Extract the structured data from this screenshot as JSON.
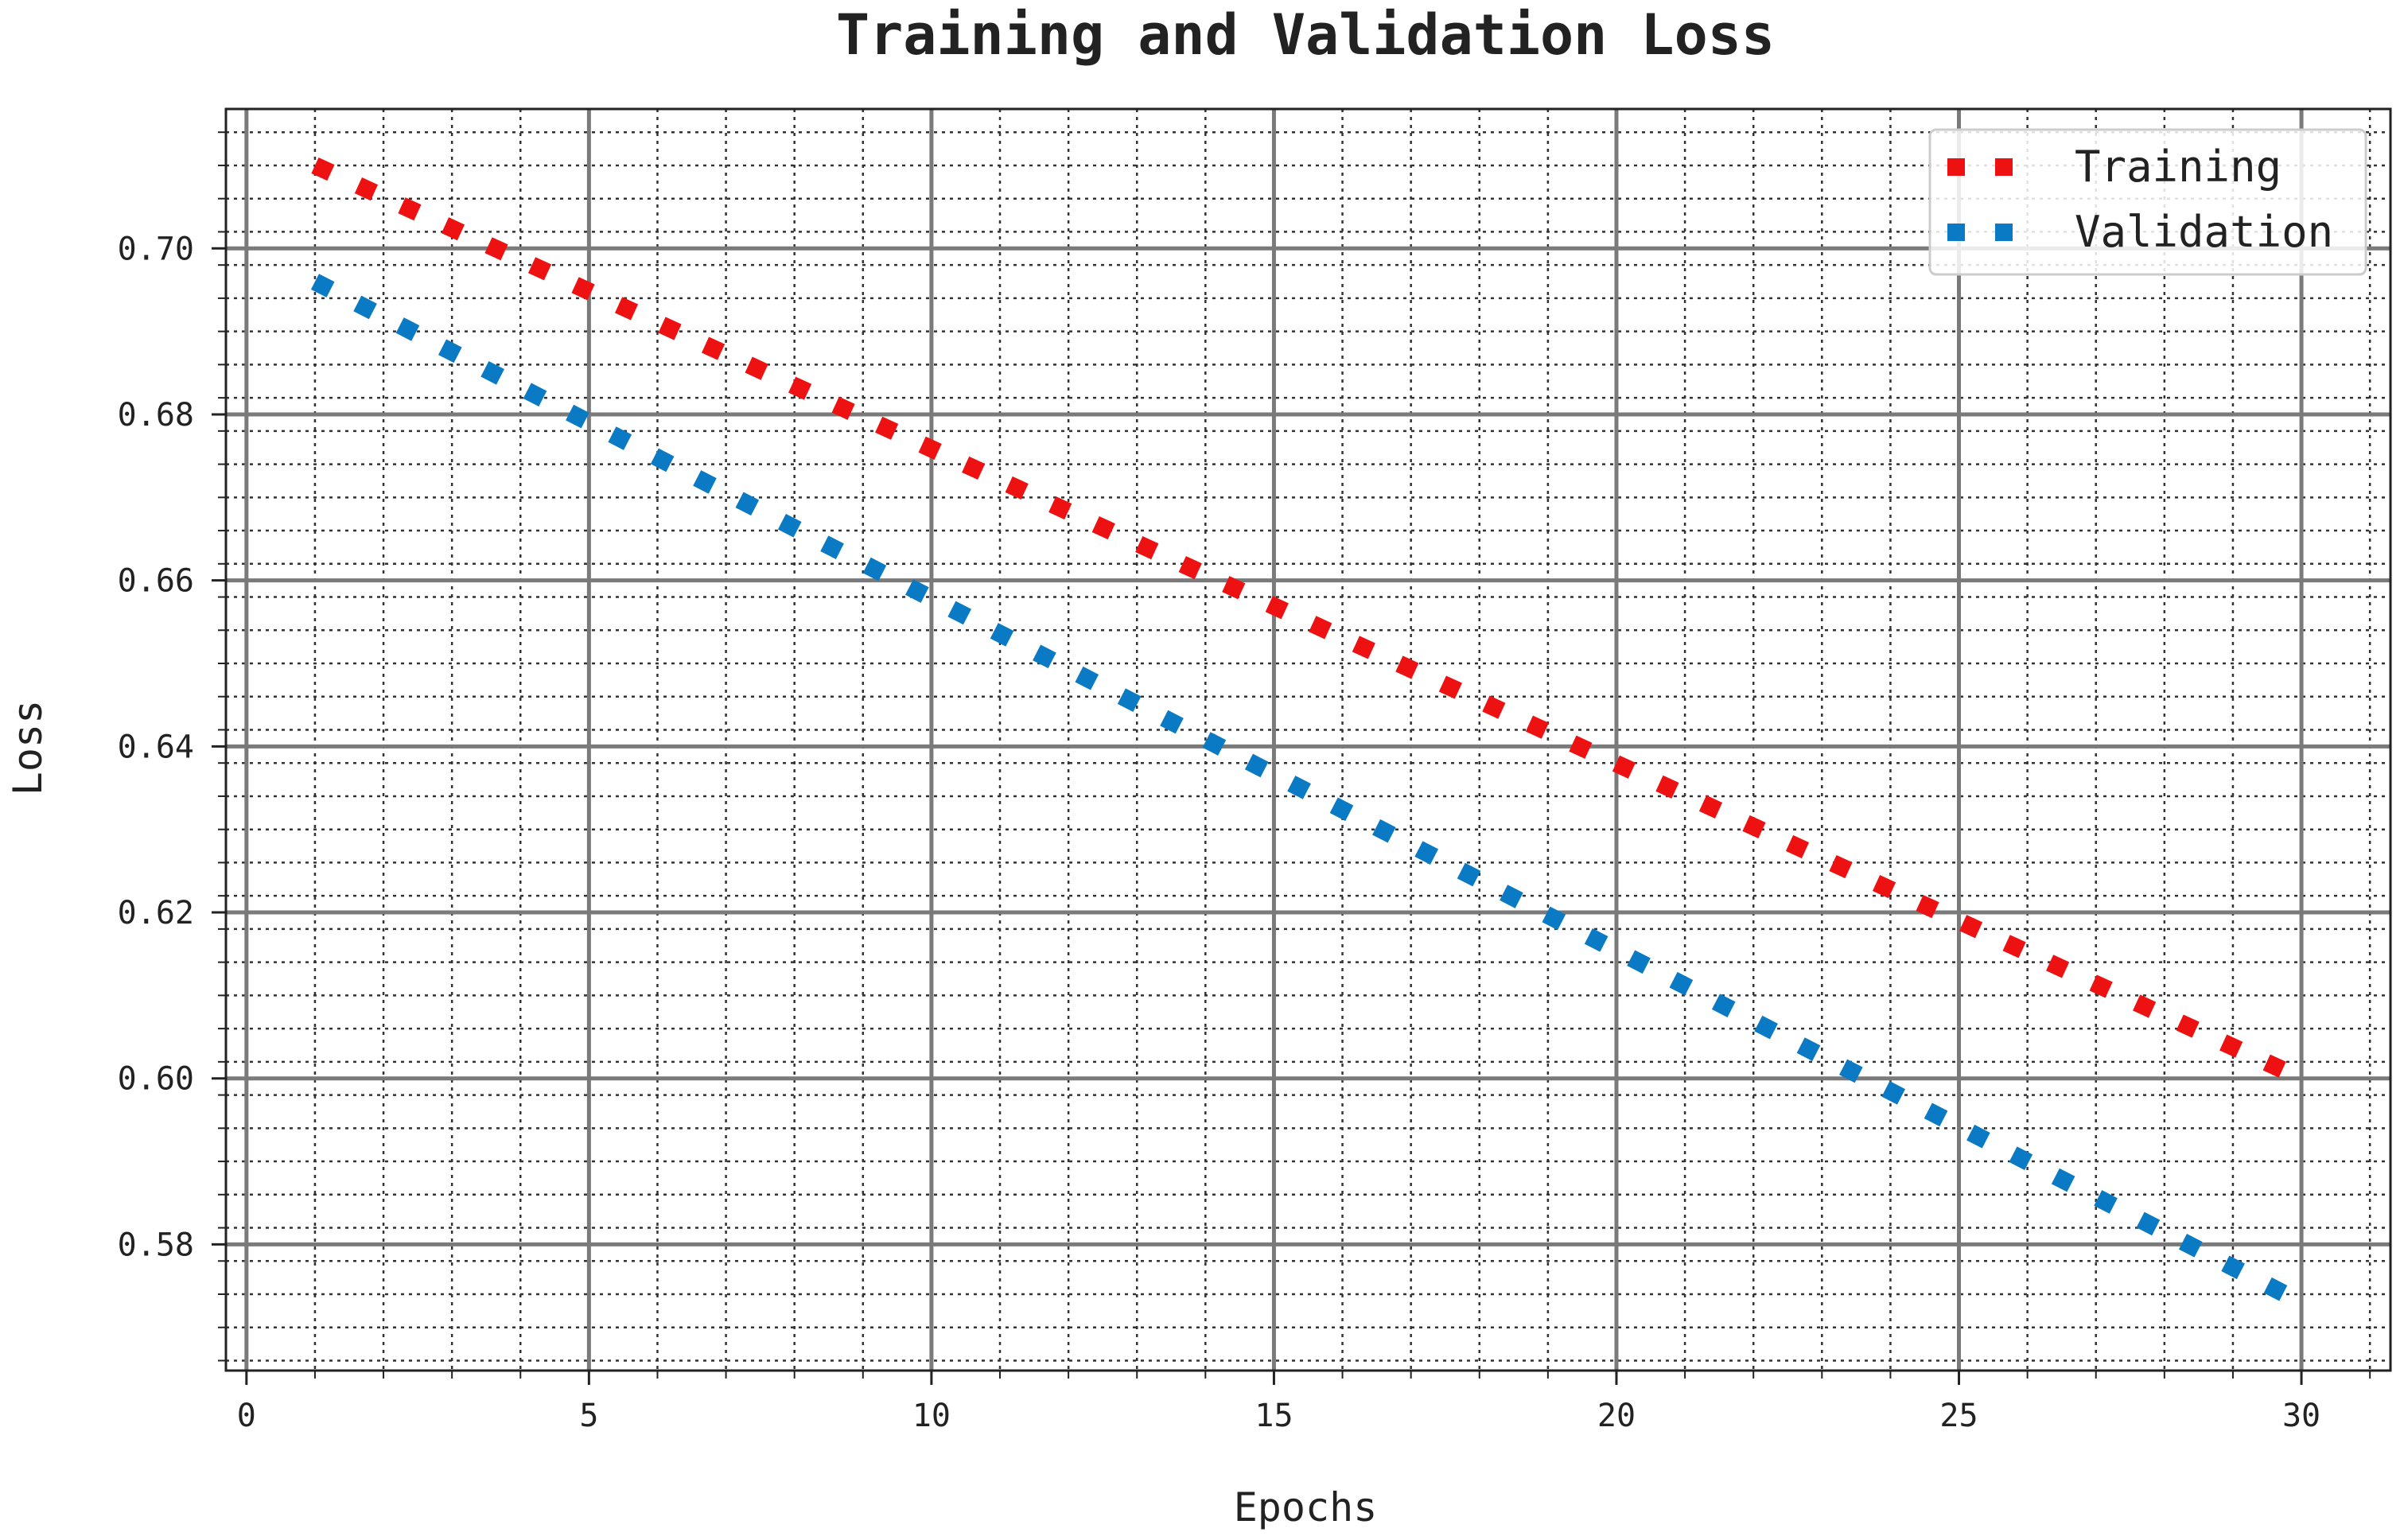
{
  "chart_data": {
    "type": "line",
    "title": "Training and Validation Loss",
    "xlabel": "Epochs",
    "ylabel": "Loss",
    "xlim": [
      -0.3,
      31.3
    ],
    "ylim": [
      0.5648,
      0.7168
    ],
    "xticks": [
      0,
      5,
      10,
      15,
      20,
      25,
      30
    ],
    "xtick_labels": [
      "0",
      "5",
      "10",
      "15",
      "20",
      "25",
      "30"
    ],
    "yticks": [
      0.58,
      0.6,
      0.62,
      0.64,
      0.66,
      0.68,
      0.7
    ],
    "ytick_labels": [
      "0.58",
      "0.60",
      "0.62",
      "0.64",
      "0.66",
      "0.68",
      "0.70"
    ],
    "grid": true,
    "minor_grid": true,
    "line_style": "dotted",
    "legend_position": "top-right",
    "series": [
      {
        "name": "Training",
        "color": "#ee1111",
        "x_start": 1,
        "x_end": 30,
        "y_start": 0.71,
        "y_end": 0.6
      },
      {
        "name": "Validation",
        "color": "#0a7ac4",
        "x_start": 1,
        "x_end": 30,
        "y_start": 0.696,
        "y_end": 0.573
      }
    ]
  }
}
